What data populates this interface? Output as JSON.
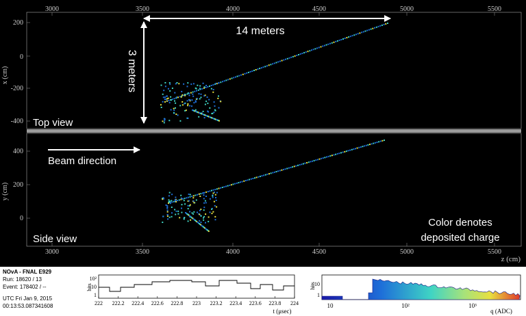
{
  "top_view": {
    "label": "Top view",
    "axis_label": "x (cm)",
    "z_ticks": [
      "3000",
      "3500",
      "4000",
      "4500",
      "5000",
      "5500"
    ],
    "x_ticks": [
      "200",
      "0",
      "-200",
      "-400"
    ]
  },
  "side_view": {
    "label": "Side view",
    "axis_label": "y (cm)",
    "y_ticks": [
      "400",
      "200",
      "0"
    ],
    "z_ticks": [
      "3000",
      "3500",
      "4000",
      "4500",
      "5000",
      "5500"
    ],
    "z_axis_label": "z (cm)"
  },
  "annotations": {
    "length": "14 meters",
    "height": "3 meters",
    "beam": "Beam direction",
    "color_line1": "Color denotes",
    "color_line2": "deposited charge"
  },
  "event_info": {
    "experiment": "NOvA - FNAL E929",
    "run": "Run:   18620 / 13",
    "event": "Event: 178402 / --",
    "date": "UTC Fri Jan 9, 2015",
    "time": "00:13:53.087341608"
  },
  "time_hist": {
    "ylabel": "hits",
    "xlabel": "t (μsec)",
    "y_ticks": [
      "10²",
      "10",
      "1"
    ],
    "x_ticks": [
      "222",
      "222.2",
      "222.4",
      "222.6",
      "222.8",
      "223",
      "223.2",
      "223.4",
      "223.6",
      "223.8",
      "224"
    ]
  },
  "charge_hist": {
    "ylabel": "hits",
    "xlabel": "q (ADC)",
    "y_ticks": [
      "10",
      "1"
    ],
    "x_ticks": [
      "10",
      "10²",
      "10³"
    ]
  },
  "colors": {
    "background": "#000000",
    "hit_low": "#1e6fd9",
    "hit_mid": "#3fd4c4",
    "hit_high": "#e8e040",
    "hit_max": "#e03a2a"
  }
}
